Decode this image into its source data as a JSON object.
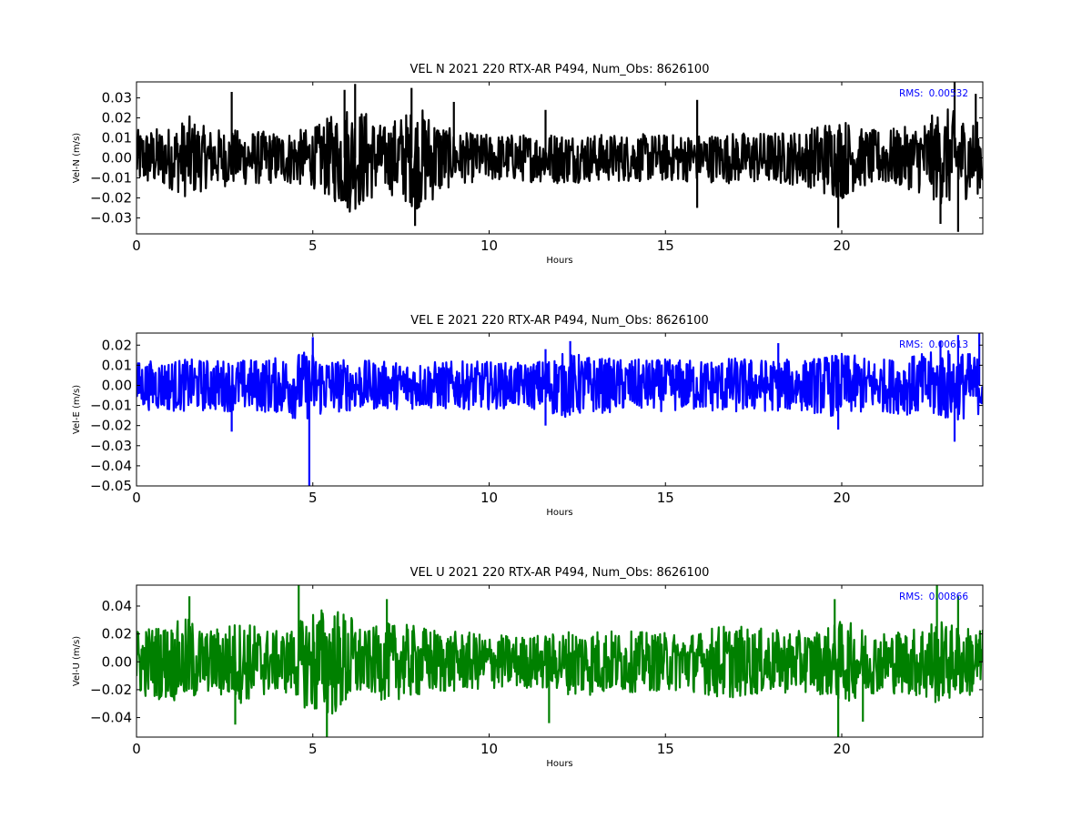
{
  "chart_data": [
    {
      "type": "line",
      "title": "VEL N 2021 220 RTX-AR  P494, Num_Obs: 8626100",
      "xlabel": "Hours",
      "ylabel": "Vel-N (m/s)",
      "xlim": [
        0,
        24
      ],
      "ylim": [
        -0.038,
        0.038
      ],
      "xticks": [
        0,
        5,
        10,
        15,
        20
      ],
      "yticks": [
        -0.03,
        -0.02,
        -0.01,
        0.0,
        0.01,
        0.02,
        0.03
      ],
      "ytick_labels": [
        "−0.03",
        "−0.02",
        "−0.01",
        "0.00",
        "0.01",
        "0.02",
        "0.03"
      ],
      "color": "#000000",
      "annotation": {
        "label": "RMS:",
        "value": "0.00532",
        "color": "#0000ff"
      },
      "envelope_x": [
        0,
        1,
        1.5,
        2,
        3,
        4,
        5,
        5.5,
        6,
        6.5,
        7,
        7.5,
        8,
        8.5,
        9,
        10,
        11,
        12,
        13,
        14,
        15,
        16,
        17,
        18,
        19,
        19.5,
        20,
        20.5,
        21,
        22,
        22.5,
        23,
        23.5,
        24
      ],
      "envelope_y": [
        0.014,
        0.016,
        0.021,
        0.015,
        0.014,
        0.013,
        0.015,
        0.021,
        0.028,
        0.024,
        0.016,
        0.022,
        0.026,
        0.021,
        0.013,
        0.012,
        0.012,
        0.013,
        0.012,
        0.012,
        0.012,
        0.012,
        0.013,
        0.013,
        0.014,
        0.019,
        0.021,
        0.015,
        0.014,
        0.016,
        0.021,
        0.025,
        0.021,
        0.017
      ],
      "spikes": [
        [
          2.7,
          0.033
        ],
        [
          5.9,
          0.034
        ],
        [
          6.2,
          0.037
        ],
        [
          7.8,
          0.035
        ],
        [
          7.9,
          -0.034
        ],
        [
          9.0,
          0.028
        ],
        [
          11.6,
          0.024
        ],
        [
          15.9,
          0.029
        ],
        [
          15.9,
          -0.025
        ],
        [
          19.9,
          -0.035
        ],
        [
          22.8,
          -0.033
        ],
        [
          23.2,
          0.038
        ],
        [
          23.3,
          -0.037
        ],
        [
          23.8,
          0.032
        ]
      ]
    },
    {
      "type": "line",
      "title": "VEL E 2021 220 RTX-AR  P494, Num_Obs: 8626100",
      "xlabel": "Hours",
      "ylabel": "Vel-E (m/s)",
      "xlim": [
        0,
        24
      ],
      "ylim": [
        -0.05,
        0.026
      ],
      "xticks": [
        0,
        5,
        10,
        15,
        20
      ],
      "yticks": [
        -0.05,
        -0.04,
        -0.03,
        -0.02,
        -0.01,
        0.0,
        0.01,
        0.02
      ],
      "ytick_labels": [
        "−0.05",
        "−0.04",
        "−0.03",
        "−0.02",
        "−0.01",
        "0.00",
        "0.01",
        "0.02"
      ],
      "color": "#0000ff",
      "annotation": {
        "label": "RMS:",
        "value": "0.00613",
        "color": "#0000ff"
      },
      "envelope_x": [
        0,
        1,
        2,
        3,
        4,
        4.5,
        5,
        5.5,
        6,
        7,
        8,
        9,
        10,
        11,
        11.5,
        12,
        12.5,
        13,
        14,
        15,
        16,
        17,
        18,
        19,
        19.5,
        20,
        21,
        22,
        23,
        23.5,
        24
      ],
      "envelope_y": [
        0.012,
        0.013,
        0.013,
        0.013,
        0.014,
        0.017,
        0.017,
        0.014,
        0.013,
        0.012,
        0.012,
        0.012,
        0.012,
        0.011,
        0.013,
        0.016,
        0.016,
        0.014,
        0.013,
        0.013,
        0.013,
        0.014,
        0.013,
        0.013,
        0.015,
        0.016,
        0.013,
        0.015,
        0.018,
        0.017,
        0.014
      ],
      "spikes": [
        [
          2.7,
          -0.023
        ],
        [
          4.9,
          -0.05
        ],
        [
          5.0,
          0.024
        ],
        [
          11.6,
          0.018
        ],
        [
          11.6,
          -0.02
        ],
        [
          12.3,
          0.022
        ],
        [
          18.2,
          0.021
        ],
        [
          19.9,
          -0.022
        ],
        [
          22.8,
          0.022
        ],
        [
          23.2,
          -0.028
        ],
        [
          23.3,
          0.025
        ],
        [
          23.9,
          0.026
        ]
      ]
    },
    {
      "type": "line",
      "title": "VEL U 2021 220 RTX-AR  P494, Num_Obs: 8626100",
      "xlabel": "Hours",
      "ylabel": "Vel-U (m/s)",
      "xlim": [
        0,
        24
      ],
      "ylim": [
        -0.054,
        0.055
      ],
      "xticks": [
        0,
        5,
        10,
        15,
        20
      ],
      "yticks": [
        -0.04,
        -0.02,
        0.0,
        0.02,
        0.04
      ],
      "ytick_labels": [
        "−0.04",
        "−0.02",
        "0.00",
        "0.02",
        "0.04"
      ],
      "color": "#008000",
      "annotation": {
        "label": "RMS:",
        "value": "0.00866",
        "color": "#0000ff"
      },
      "envelope_x": [
        0,
        1,
        1.5,
        2,
        2.5,
        3,
        4,
        4.5,
        5,
        5.5,
        6,
        6.5,
        7,
        8,
        9,
        10,
        11,
        12,
        12.5,
        13,
        14,
        15,
        16,
        16.5,
        17,
        18,
        19,
        19.5,
        20,
        20.5,
        21,
        22,
        22.5,
        23,
        24
      ],
      "envelope_y": [
        0.025,
        0.028,
        0.032,
        0.022,
        0.028,
        0.03,
        0.022,
        0.025,
        0.04,
        0.04,
        0.036,
        0.022,
        0.028,
        0.026,
        0.022,
        0.02,
        0.019,
        0.021,
        0.026,
        0.024,
        0.022,
        0.021,
        0.022,
        0.027,
        0.026,
        0.023,
        0.022,
        0.024,
        0.03,
        0.026,
        0.022,
        0.024,
        0.032,
        0.028,
        0.024
      ],
      "spikes": [
        [
          1.5,
          0.047
        ],
        [
          2.8,
          -0.045
        ],
        [
          4.6,
          0.055
        ],
        [
          5.4,
          -0.054
        ],
        [
          7.1,
          0.045
        ],
        [
          11.7,
          -0.044
        ],
        [
          19.8,
          0.045
        ],
        [
          19.9,
          -0.054
        ],
        [
          20.6,
          -0.043
        ],
        [
          22.7,
          0.055
        ],
        [
          23.3,
          0.047
        ]
      ]
    }
  ]
}
